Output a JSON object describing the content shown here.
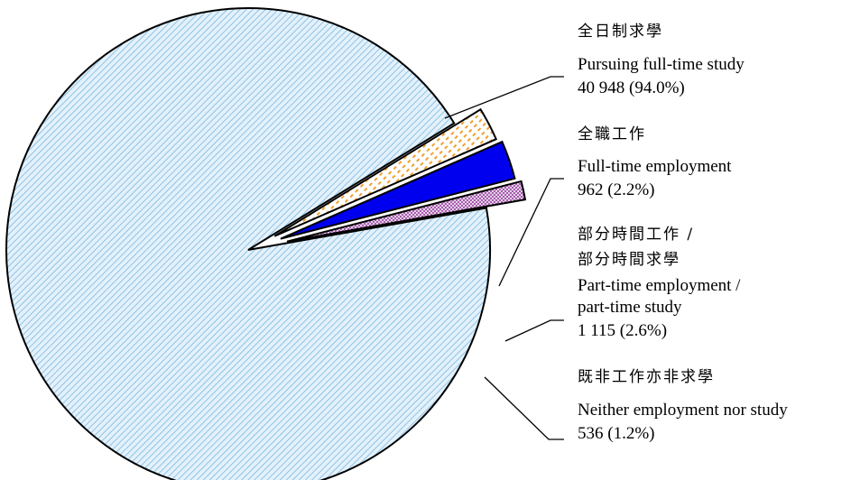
{
  "chart_data": {
    "type": "pie",
    "exploded": true,
    "slices": [
      {
        "label_zh": "全日制求學",
        "label_en": [
          "Pursuing full-time study"
        ],
        "value": 40948,
        "value_text": "40 948 (94.0%)",
        "percent": 94.0,
        "fill": "#cfe6f6",
        "hatch": "#8ec3e8",
        "pattern": "diagonal-lines"
      },
      {
        "label_zh": "全職工作",
        "label_en": [
          "Full-time employment"
        ],
        "value": 962,
        "value_text": "962 (2.2%)",
        "percent": 2.2,
        "fill": "#ffffff",
        "hatch": "#f0a030",
        "pattern": "dashed-diagonal"
      },
      {
        "label_zh": [
          "部分時間工作 /",
          "部分時間求學"
        ],
        "label_en": [
          "Part-time employment /",
          "part-time study"
        ],
        "value": 1115,
        "value_text": "1 115 (2.6%)",
        "percent": 2.6,
        "fill": "#0000ee",
        "hatch": null,
        "pattern": "solid"
      },
      {
        "label_zh": "既非工作亦非求學",
        "label_en": [
          "Neither employment nor study"
        ],
        "value": 536,
        "value_text": "536 (1.2%)",
        "percent": 1.2,
        "fill": "#ffffff",
        "hatch": "#b060b0",
        "pattern": "crosshatch"
      }
    ]
  }
}
